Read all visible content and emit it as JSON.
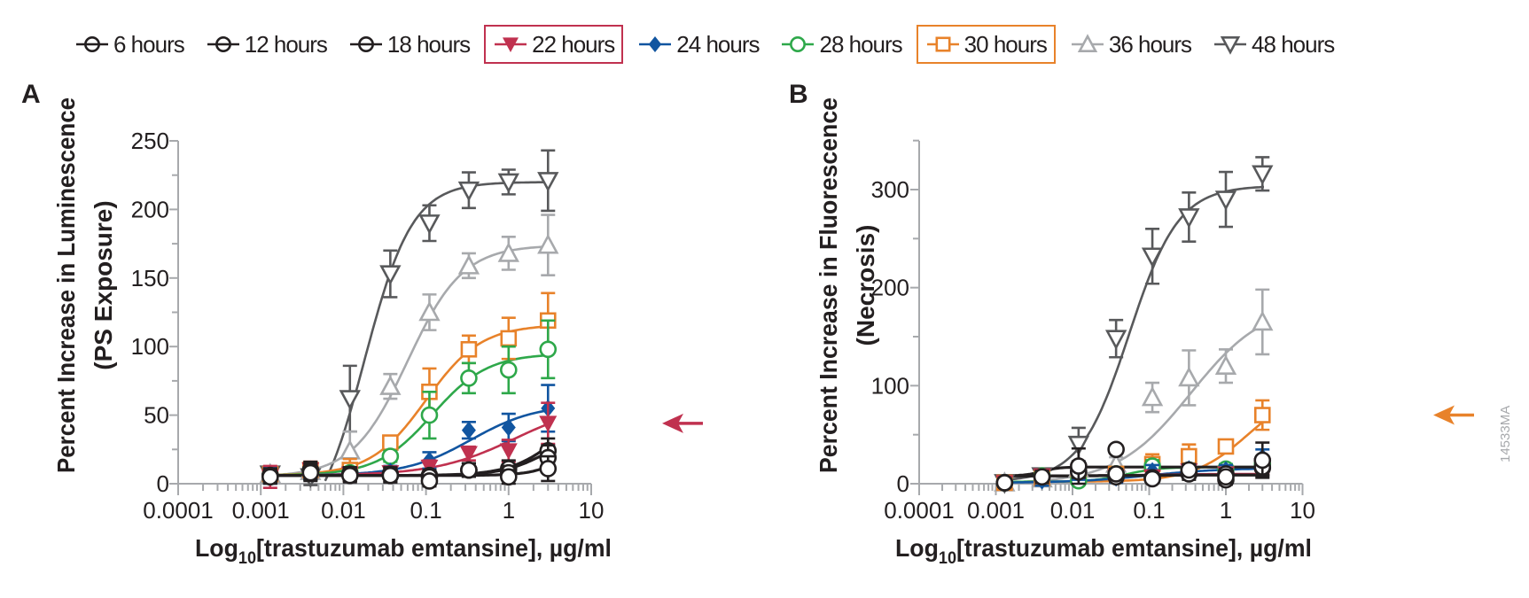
{
  "legend": [
    {
      "label": "6 hours",
      "marker": "open-circle-crossed",
      "color": "#231f20",
      "boxed": false
    },
    {
      "label": "12 hours",
      "marker": "open-circle-crossed",
      "color": "#231f20",
      "boxed": false
    },
    {
      "label": "18 hours",
      "marker": "open-circle-crossed",
      "color": "#231f20",
      "boxed": false
    },
    {
      "label": "22 hours",
      "marker": "filled-triangle-down",
      "color": "#c0314f",
      "boxed": true
    },
    {
      "label": "24 hours",
      "marker": "filled-diamond",
      "color": "#1155a0",
      "boxed": false
    },
    {
      "label": "28 hours",
      "marker": "open-circle",
      "color": "#2ea84a",
      "boxed": false
    },
    {
      "label": "30 hours",
      "marker": "open-square",
      "color": "#e8822a",
      "boxed": true
    },
    {
      "label": "36 hours",
      "marker": "open-triangle-up",
      "color": "#a7a9ac",
      "boxed": false
    },
    {
      "label": "48 hours",
      "marker": "open-triangle-down",
      "color": "#58595b",
      "boxed": false
    }
  ],
  "figure_id": "14533MA",
  "chart_data": [
    {
      "panel": "A",
      "type": "line",
      "xscale": "log",
      "xlim": [
        0.0001,
        10
      ],
      "ylim": [
        0,
        250
      ],
      "xticks": [
        "0.0001",
        "0.001",
        "0.01",
        "0.1",
        "1",
        "10"
      ],
      "yticks": [
        "0",
        "50",
        "100",
        "150",
        "200",
        "250"
      ],
      "xlabel_main": "Log",
      "xlabel_sub": "10",
      "xlabel_rest": "[trastuzumab emtansine], µg/ml",
      "ylabel_line1": "Percent Increase in Luminescence",
      "ylabel_line2": "(PS Exposure)",
      "x": [
        0.0013,
        0.004,
        0.012,
        0.037,
        0.11,
        0.33,
        1,
        3
      ],
      "annotation": {
        "type": "arrow",
        "series": "22 hours",
        "color": "#c0314f"
      },
      "series": [
        {
          "name": "6 hours",
          "color": "#231f20",
          "y": [
            5,
            8,
            6,
            6,
            2,
            10,
            5,
            11
          ],
          "err": [
            5,
            6,
            5,
            5,
            4,
            5,
            5,
            9
          ],
          "fit": {
            "bottom": 6,
            "top": 60,
            "ec50": 8,
            "hill": 2
          }
        },
        {
          "name": "12 hours",
          "color": "#231f20",
          "y": [
            6,
            9,
            7,
            6,
            5,
            10,
            8,
            19
          ],
          "err": [
            5,
            6,
            5,
            5,
            4,
            5,
            5,
            9
          ],
          "fit": {
            "bottom": 6,
            "top": 40,
            "ec50": 3,
            "hill": 1.6
          }
        },
        {
          "name": "18 hours",
          "color": "#231f20",
          "y": [
            6,
            10,
            7,
            7,
            6,
            10,
            11,
            24
          ],
          "err": [
            5,
            6,
            5,
            5,
            4,
            5,
            6,
            9
          ],
          "fit": {
            "bottom": 6,
            "top": 60,
            "ec50": 4,
            "hill": 1.5
          }
        },
        {
          "name": "22 hours",
          "color": "#c0314f",
          "y": [
            5,
            10,
            7,
            8,
            12,
            22,
            24,
            44
          ],
          "err": [
            8,
            6,
            4,
            4,
            5,
            5,
            8,
            15
          ],
          "fit": {
            "bottom": 6,
            "top": 60,
            "ec50": 1.2,
            "hill": 0.9
          }
        },
        {
          "name": "24 hours",
          "color": "#1155a0",
          "y": [
            6,
            9,
            7,
            9,
            17,
            39,
            41,
            55
          ],
          "err": [
            6,
            6,
            4,
            4,
            6,
            6,
            10,
            17
          ],
          "fit": {
            "bottom": 6,
            "top": 58,
            "ec50": 0.35,
            "hill": 1.1
          }
        },
        {
          "name": "28 hours",
          "color": "#2ea84a",
          "y": [
            6,
            9,
            8,
            20,
            50,
            77,
            83,
            98
          ],
          "err": [
            5,
            6,
            4,
            4,
            17,
            11,
            17,
            21
          ],
          "fit": {
            "bottom": 6,
            "top": 95,
            "ec50": 0.12,
            "hill": 1.3
          }
        },
        {
          "name": "30 hours",
          "color": "#e8822a",
          "y": [
            7,
            10,
            10,
            30,
            67,
            98,
            106,
            119
          ],
          "err": [
            5,
            6,
            8,
            5,
            17,
            10,
            15,
            20
          ],
          "fit": {
            "bottom": 6,
            "top": 116,
            "ec50": 0.1,
            "hill": 1.3
          }
        },
        {
          "name": "36 hours",
          "color": "#a7a9ac",
          "y": [
            7,
            9,
            24,
            71,
            125,
            159,
            168,
            174
          ],
          "err": [
            5,
            6,
            14,
            9,
            13,
            9,
            12,
            22
          ],
          "fit": {
            "bottom": 5,
            "top": 174,
            "ec50": 0.06,
            "hill": 1.3
          }
        },
        {
          "name": "48 hours",
          "color": "#58595b",
          "y": [
            7,
            5,
            62,
            153,
            190,
            214,
            220,
            221
          ],
          "err": [
            5,
            6,
            24,
            17,
            13,
            13,
            9,
            22
          ],
          "fit": {
            "bottom": -40,
            "top": 220,
            "ec50": 0.018,
            "hill": 1.5
          }
        }
      ]
    },
    {
      "panel": "B",
      "type": "line",
      "xscale": "log",
      "xlim": [
        0.0001,
        10
      ],
      "ylim": [
        0,
        350
      ],
      "xticks": [
        "0.0001",
        "0.001",
        "0.01",
        "0.1",
        "1",
        "10"
      ],
      "yticks": [
        "0",
        "100",
        "200",
        "300"
      ],
      "xlabel_main": "Log",
      "xlabel_sub": "10",
      "xlabel_rest": "[trastuzumab emtansine], µg/ml",
      "ylabel_line1": "Percent Increase in Fluorescence",
      "ylabel_line2": "(Necrosis)",
      "x": [
        0.0013,
        0.004,
        0.012,
        0.037,
        0.11,
        0.33,
        1,
        3
      ],
      "annotation": {
        "type": "arrow",
        "series": "30 hours",
        "color": "#e8822a"
      },
      "series": [
        {
          "name": "6 hours",
          "color": "#231f20",
          "y": [
            1,
            7,
            18,
            35,
            5,
            14,
            7,
            24
          ],
          "err": [
            4,
            6,
            18,
            4,
            4,
            6,
            5,
            18
          ],
          "fit": {
            "bottom": 8,
            "top": 17,
            "ec50": 0.004,
            "hill": 4
          }
        },
        {
          "name": "12 hours",
          "color": "#231f20",
          "y": [
            1,
            7,
            12,
            10,
            6,
            10,
            4,
            17
          ],
          "err": [
            4,
            6,
            6,
            5,
            4,
            6,
            5,
            8
          ],
          "fit": {
            "bottom": 8,
            "top": 9,
            "ec50": 0.1,
            "hill": 1
          }
        },
        {
          "name": "18 hours",
          "color": "#231f20",
          "y": [
            1,
            7,
            13,
            7,
            6,
            12,
            10,
            16
          ],
          "err": [
            4,
            6,
            6,
            5,
            4,
            6,
            5,
            8
          ],
          "fit": {
            "bottom": 8,
            "top": 9,
            "ec50": 0.1,
            "hill": 1
          }
        },
        {
          "name": "22 hours",
          "color": "#c0314f",
          "y": [
            1,
            8,
            12,
            7,
            7,
            13,
            10,
            18
          ],
          "err": [
            4,
            5,
            6,
            5,
            4,
            5,
            5,
            8
          ],
          "fit": {
            "bottom": 8,
            "top": 10,
            "ec50": 0.1,
            "hill": 1
          }
        },
        {
          "name": "24 hours",
          "color": "#1155a0",
          "y": [
            1,
            3,
            10,
            6,
            13,
            15,
            14,
            27
          ],
          "err": [
            4,
            5,
            6,
            5,
            6,
            5,
            5,
            8
          ],
          "fit": {
            "bottom": 1,
            "top": 16,
            "ec50": 0.1,
            "hill": 0.9
          }
        },
        {
          "name": "28 hours",
          "color": "#2ea84a",
          "y": [
            1,
            8,
            3,
            10,
            18,
            14,
            15,
            20
          ],
          "err": [
            4,
            5,
            4,
            5,
            6,
            5,
            5,
            8
          ],
          "fit": {
            "bottom": 2,
            "top": 17,
            "ec50": 0.05,
            "hill": 2
          }
        },
        {
          "name": "30 hours",
          "color": "#e8822a",
          "y": [
            1,
            6,
            10,
            10,
            20,
            28,
            38,
            70
          ],
          "err": [
            4,
            5,
            6,
            5,
            10,
            12,
            5,
            15
          ],
          "fit": {
            "bottom": 2,
            "top": 100,
            "ec50": 2,
            "hill": 1.2
          }
        },
        {
          "name": "36 hours",
          "color": "#a7a9ac",
          "y": [
            1,
            5,
            15,
            20,
            88,
            108,
            120,
            165
          ],
          "err": [
            4,
            5,
            6,
            7,
            15,
            28,
            17,
            33
          ],
          "fit": {
            "bottom": 0,
            "top": 185,
            "ec50": 0.35,
            "hill": 0.9
          }
        },
        {
          "name": "48 hours",
          "color": "#58595b",
          "y": [
            1,
            8,
            40,
            148,
            232,
            272,
            290,
            316
          ],
          "err": [
            4,
            5,
            17,
            19,
            28,
            25,
            28,
            17
          ],
          "fit": {
            "bottom": 2,
            "top": 304,
            "ec50": 0.055,
            "hill": 1.35
          }
        }
      ]
    }
  ]
}
